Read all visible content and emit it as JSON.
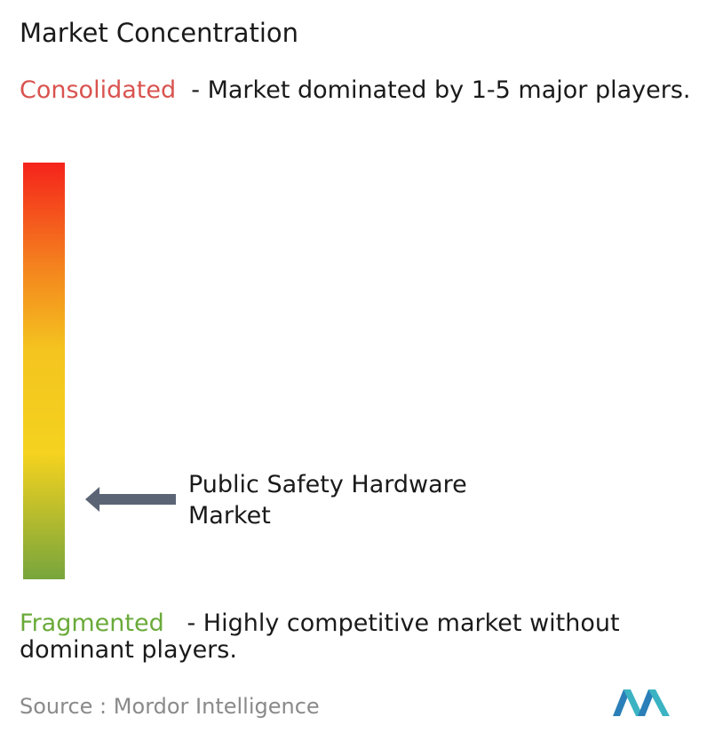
{
  "title": "Market Concentration",
  "consolidated": {
    "label": "Consolidated",
    "description": "- Market dominated by 1-5 major players."
  },
  "market": "Public Safety Hardware Market",
  "fragmented": {
    "label": "Fragmented",
    "description": "- Highly competitive market without dominant players."
  },
  "source": {
    "label": "Source :",
    "name": "Mordor Intelligence"
  }
}
